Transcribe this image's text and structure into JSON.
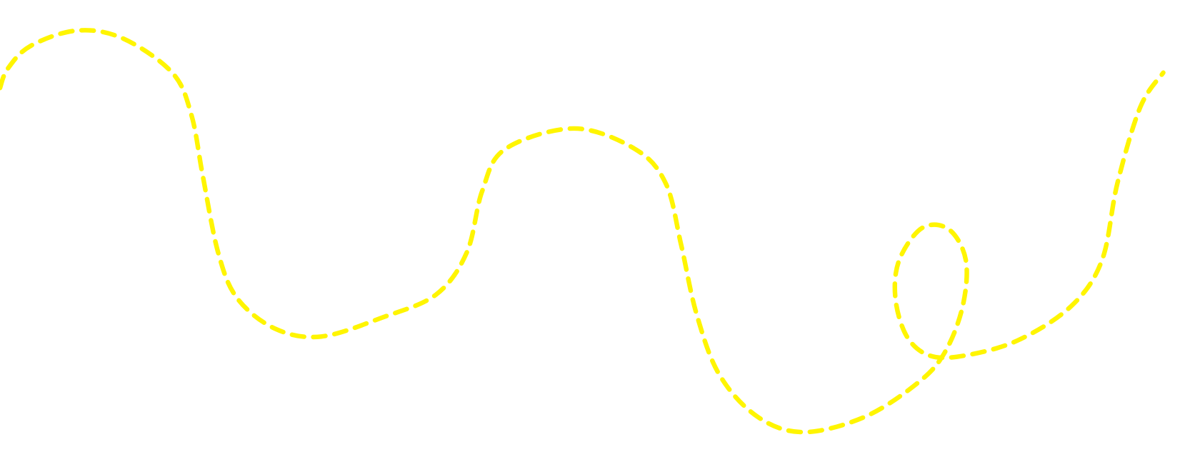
{
  "canvas": {
    "background": "#ffffff"
  },
  "path": {
    "style": "dashed",
    "color": "#fff500",
    "shape": "wavy-curve-with-loop"
  }
}
